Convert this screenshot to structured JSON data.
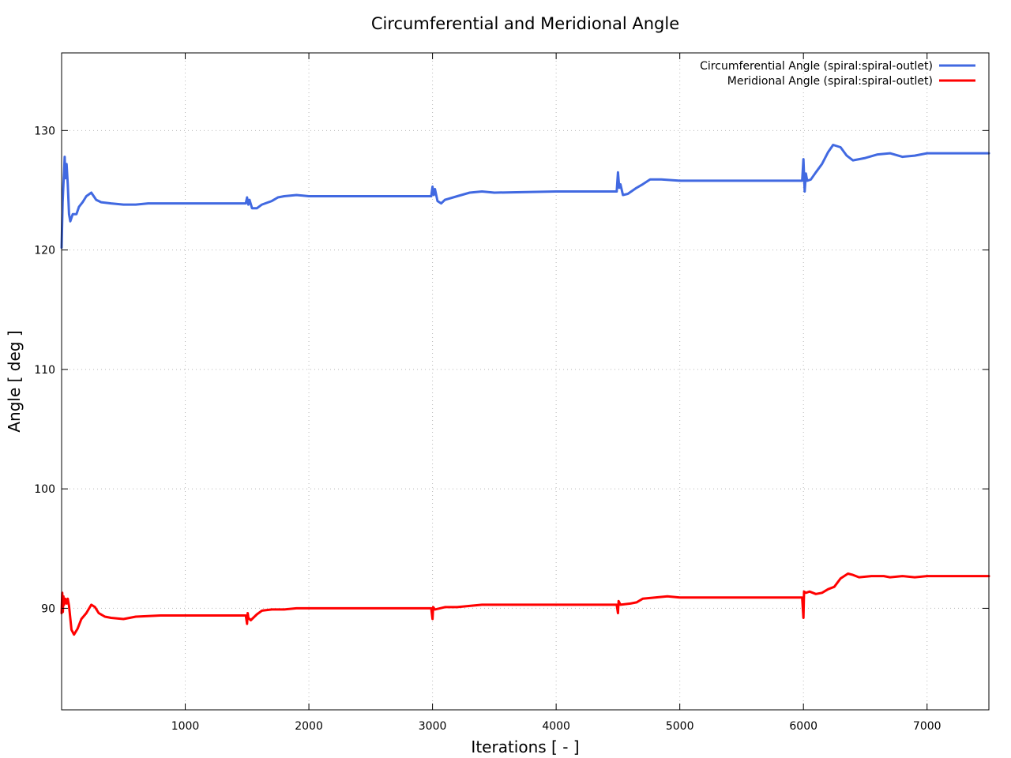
{
  "chart_data": {
    "type": "line",
    "title": "Circumferential and Meridional Angle",
    "xlabel": "Iterations [ - ]",
    "ylabel": "Angle [ deg ]",
    "xlim": [
      0,
      7500
    ],
    "ylim": [
      81.5,
      136.5
    ],
    "xticks": [
      1000,
      2000,
      3000,
      4000,
      5000,
      6000,
      7000
    ],
    "yticks": [
      90,
      100,
      110,
      120,
      130
    ],
    "grid": true,
    "legend_position": "top-right",
    "series": [
      {
        "name": "Circumferential Angle (spiral:spiral-outlet)",
        "color": "#4169e1",
        "points": [
          [
            0,
            120.2
          ],
          [
            8,
            124
          ],
          [
            15,
            125.5
          ],
          [
            20,
            126.5
          ],
          [
            25,
            127.8
          ],
          [
            30,
            126
          ],
          [
            40,
            127.2
          ],
          [
            50,
            125.5
          ],
          [
            60,
            123
          ],
          [
            70,
            122.4
          ],
          [
            90,
            123
          ],
          [
            120,
            123
          ],
          [
            140,
            123.6
          ],
          [
            170,
            124
          ],
          [
            200,
            124.5
          ],
          [
            240,
            124.8
          ],
          [
            280,
            124.2
          ],
          [
            320,
            124
          ],
          [
            400,
            123.9
          ],
          [
            500,
            123.8
          ],
          [
            600,
            123.8
          ],
          [
            700,
            123.9
          ],
          [
            800,
            123.9
          ],
          [
            1000,
            123.9
          ],
          [
            1200,
            123.9
          ],
          [
            1400,
            123.9
          ],
          [
            1490,
            123.9
          ],
          [
            1500,
            124.4
          ],
          [
            1510,
            123.8
          ],
          [
            1520,
            124.2
          ],
          [
            1540,
            123.5
          ],
          [
            1580,
            123.5
          ],
          [
            1620,
            123.8
          ],
          [
            1700,
            124.1
          ],
          [
            1750,
            124.4
          ],
          [
            1800,
            124.5
          ],
          [
            1900,
            124.6
          ],
          [
            2000,
            124.5
          ],
          [
            2500,
            124.5
          ],
          [
            2990,
            124.5
          ],
          [
            3000,
            125.3
          ],
          [
            3010,
            124.6
          ],
          [
            3020,
            125.1
          ],
          [
            3040,
            124.1
          ],
          [
            3070,
            123.9
          ],
          [
            3100,
            124.2
          ],
          [
            3200,
            124.5
          ],
          [
            3300,
            124.8
          ],
          [
            3400,
            124.9
          ],
          [
            3500,
            124.8
          ],
          [
            4000,
            124.9
          ],
          [
            4490,
            124.9
          ],
          [
            4500,
            126.5
          ],
          [
            4510,
            125.2
          ],
          [
            4520,
            125.5
          ],
          [
            4540,
            124.6
          ],
          [
            4580,
            124.7
          ],
          [
            4650,
            125.2
          ],
          [
            4700,
            125.5
          ],
          [
            4760,
            125.9
          ],
          [
            4850,
            125.9
          ],
          [
            5000,
            125.8
          ],
          [
            5500,
            125.8
          ],
          [
            5990,
            125.8
          ],
          [
            6000,
            127.6
          ],
          [
            6010,
            124.9
          ],
          [
            6020,
            126.4
          ],
          [
            6030,
            125.8
          ],
          [
            6060,
            125.9
          ],
          [
            6100,
            126.5
          ],
          [
            6150,
            127.2
          ],
          [
            6200,
            128.2
          ],
          [
            6240,
            128.8
          ],
          [
            6300,
            128.6
          ],
          [
            6350,
            127.9
          ],
          [
            6400,
            127.5
          ],
          [
            6500,
            127.7
          ],
          [
            6600,
            128
          ],
          [
            6700,
            128.1
          ],
          [
            6800,
            127.8
          ],
          [
            6900,
            127.9
          ],
          [
            7000,
            128.1
          ],
          [
            7250,
            128.1
          ],
          [
            7500,
            128.1
          ]
        ]
      },
      {
        "name": "Meridional Angle (spiral:spiral-outlet)",
        "color": "#ff0000",
        "points": [
          [
            0,
            89.6
          ],
          [
            5,
            91.3
          ],
          [
            10,
            89.7
          ],
          [
            15,
            91
          ],
          [
            20,
            90.3
          ],
          [
            30,
            90.8
          ],
          [
            40,
            90.4
          ],
          [
            50,
            90.8
          ],
          [
            60,
            90.2
          ],
          [
            80,
            88.2
          ],
          [
            100,
            87.8
          ],
          [
            130,
            88.3
          ],
          [
            160,
            89.1
          ],
          [
            200,
            89.6
          ],
          [
            240,
            90.3
          ],
          [
            270,
            90.1
          ],
          [
            300,
            89.6
          ],
          [
            350,
            89.3
          ],
          [
            400,
            89.2
          ],
          [
            500,
            89.1
          ],
          [
            600,
            89.3
          ],
          [
            800,
            89.4
          ],
          [
            1000,
            89.4
          ],
          [
            1200,
            89.4
          ],
          [
            1490,
            89.4
          ],
          [
            1500,
            88.7
          ],
          [
            1505,
            89.6
          ],
          [
            1510,
            89.2
          ],
          [
            1530,
            89
          ],
          [
            1580,
            89.5
          ],
          [
            1620,
            89.8
          ],
          [
            1700,
            89.9
          ],
          [
            1800,
            89.9
          ],
          [
            1900,
            90
          ],
          [
            2000,
            90
          ],
          [
            2500,
            90
          ],
          [
            2990,
            90
          ],
          [
            3000,
            89.1
          ],
          [
            3005,
            90.1
          ],
          [
            3020,
            89.9
          ],
          [
            3100,
            90.1
          ],
          [
            3200,
            90.1
          ],
          [
            3300,
            90.2
          ],
          [
            3400,
            90.3
          ],
          [
            3500,
            90.3
          ],
          [
            4000,
            90.3
          ],
          [
            4490,
            90.3
          ],
          [
            4500,
            89.6
          ],
          [
            4505,
            90.6
          ],
          [
            4520,
            90.3
          ],
          [
            4600,
            90.4
          ],
          [
            4650,
            90.5
          ],
          [
            4700,
            90.8
          ],
          [
            4800,
            90.9
          ],
          [
            4900,
            91
          ],
          [
            5000,
            90.9
          ],
          [
            5500,
            90.9
          ],
          [
            5990,
            90.9
          ],
          [
            6000,
            89.2
          ],
          [
            6005,
            91.4
          ],
          [
            6020,
            91.3
          ],
          [
            6050,
            91.4
          ],
          [
            6100,
            91.2
          ],
          [
            6150,
            91.3
          ],
          [
            6200,
            91.6
          ],
          [
            6250,
            91.8
          ],
          [
            6300,
            92.5
          ],
          [
            6360,
            92.9
          ],
          [
            6400,
            92.8
          ],
          [
            6450,
            92.6
          ],
          [
            6550,
            92.7
          ],
          [
            6650,
            92.7
          ],
          [
            6700,
            92.6
          ],
          [
            6800,
            92.7
          ],
          [
            6900,
            92.6
          ],
          [
            7000,
            92.7
          ],
          [
            7250,
            92.7
          ],
          [
            7500,
            92.7
          ]
        ]
      }
    ]
  }
}
